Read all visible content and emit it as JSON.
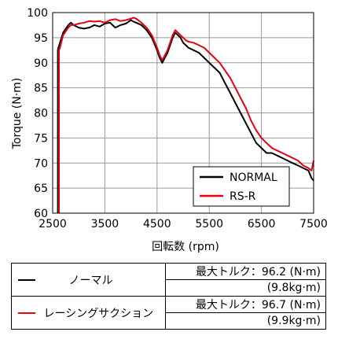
{
  "chart_data": {
    "type": "line",
    "xlabel": "回転数 (rpm)",
    "ylabel": "Torque (N·m)",
    "xlim": [
      2500,
      7500
    ],
    "ylim": [
      60,
      100
    ],
    "xticks": [
      2500,
      3500,
      4500,
      5500,
      6500,
      7500
    ],
    "yticks": [
      60,
      65,
      70,
      75,
      80,
      85,
      90,
      95,
      100
    ],
    "grid": true,
    "legend_placement": "bottom-right",
    "series": [
      {
        "name": "NORMAL",
        "color": "#000000",
        "x": [
          2600,
          2600,
          2610,
          2640,
          2700,
          2800,
          2850,
          2900,
          3000,
          3100,
          3200,
          3300,
          3400,
          3500,
          3600,
          3700,
          3800,
          3900,
          4000,
          4050,
          4100,
          4200,
          4300,
          4400,
          4500,
          4550,
          4600,
          4700,
          4800,
          4850,
          4900,
          4950,
          5000,
          5050,
          5100,
          5200,
          5300,
          5400,
          5500,
          5600,
          5700,
          5800,
          5900,
          6000,
          6100,
          6200,
          6300,
          6400,
          6500,
          6600,
          6700,
          6800,
          6900,
          7000,
          7100,
          7200,
          7300,
          7400,
          7460,
          7500
        ],
        "y": [
          60,
          92.5,
          93,
          94,
          96,
          97.5,
          98,
          97.5,
          97,
          96.8,
          97,
          97.5,
          97.2,
          97.8,
          98,
          97,
          97.5,
          97.8,
          98.5,
          98.2,
          98,
          97.5,
          96.5,
          95,
          92.5,
          91,
          90,
          92,
          95,
          96,
          95.5,
          95,
          94,
          93.5,
          93,
          92.5,
          92,
          91,
          90,
          89,
          88,
          86,
          84,
          82,
          80,
          78,
          76,
          74,
          73,
          72,
          72,
          71.5,
          71,
          70.5,
          70,
          69.5,
          69,
          68.5,
          67,
          66.5
        ]
      },
      {
        "name": "RS-R",
        "color": "#e60012",
        "x": [
          2620,
          2620,
          2640,
          2700,
          2800,
          2850,
          2900,
          3000,
          3100,
          3200,
          3300,
          3400,
          3500,
          3600,
          3700,
          3800,
          3900,
          4000,
          4050,
          4100,
          4200,
          4300,
          4400,
          4500,
          4550,
          4600,
          4700,
          4800,
          4850,
          4900,
          4950,
          5000,
          5050,
          5100,
          5200,
          5300,
          5400,
          5500,
          5600,
          5700,
          5800,
          5900,
          6000,
          6100,
          6200,
          6300,
          6400,
          6500,
          6600,
          6700,
          6800,
          6900,
          7000,
          7100,
          7200,
          7300,
          7400,
          7460,
          7500
        ],
        "y": [
          60,
          92.5,
          93,
          95.5,
          97,
          97.5,
          97.5,
          97.8,
          98,
          98.3,
          98.2,
          98.3,
          98,
          98.5,
          98.7,
          98.3,
          98.5,
          98.8,
          99,
          98.8,
          98,
          97,
          95.5,
          93,
          91.5,
          90.5,
          92.5,
          95.5,
          96.5,
          96,
          95.5,
          95,
          94.5,
          94.2,
          94,
          93.5,
          93,
          92,
          91,
          90,
          88.5,
          87,
          85,
          83,
          81,
          78.5,
          76.5,
          75,
          74,
          73,
          72.5,
          72,
          71.5,
          71,
          70.5,
          69.5,
          69,
          68.5,
          70.5
        ]
      }
    ]
  },
  "table": {
    "rows": [
      {
        "name": "ノーマル",
        "color": "#000000",
        "torque": "最大トルク：96.2 (N·m)",
        "kgm": "(9.8kg·m)"
      },
      {
        "name": "レーシングサクション",
        "color": "#e60012",
        "torque": "最大トルク：96.7 (N·m)",
        "kgm": "(9.9kg·m)"
      }
    ]
  }
}
